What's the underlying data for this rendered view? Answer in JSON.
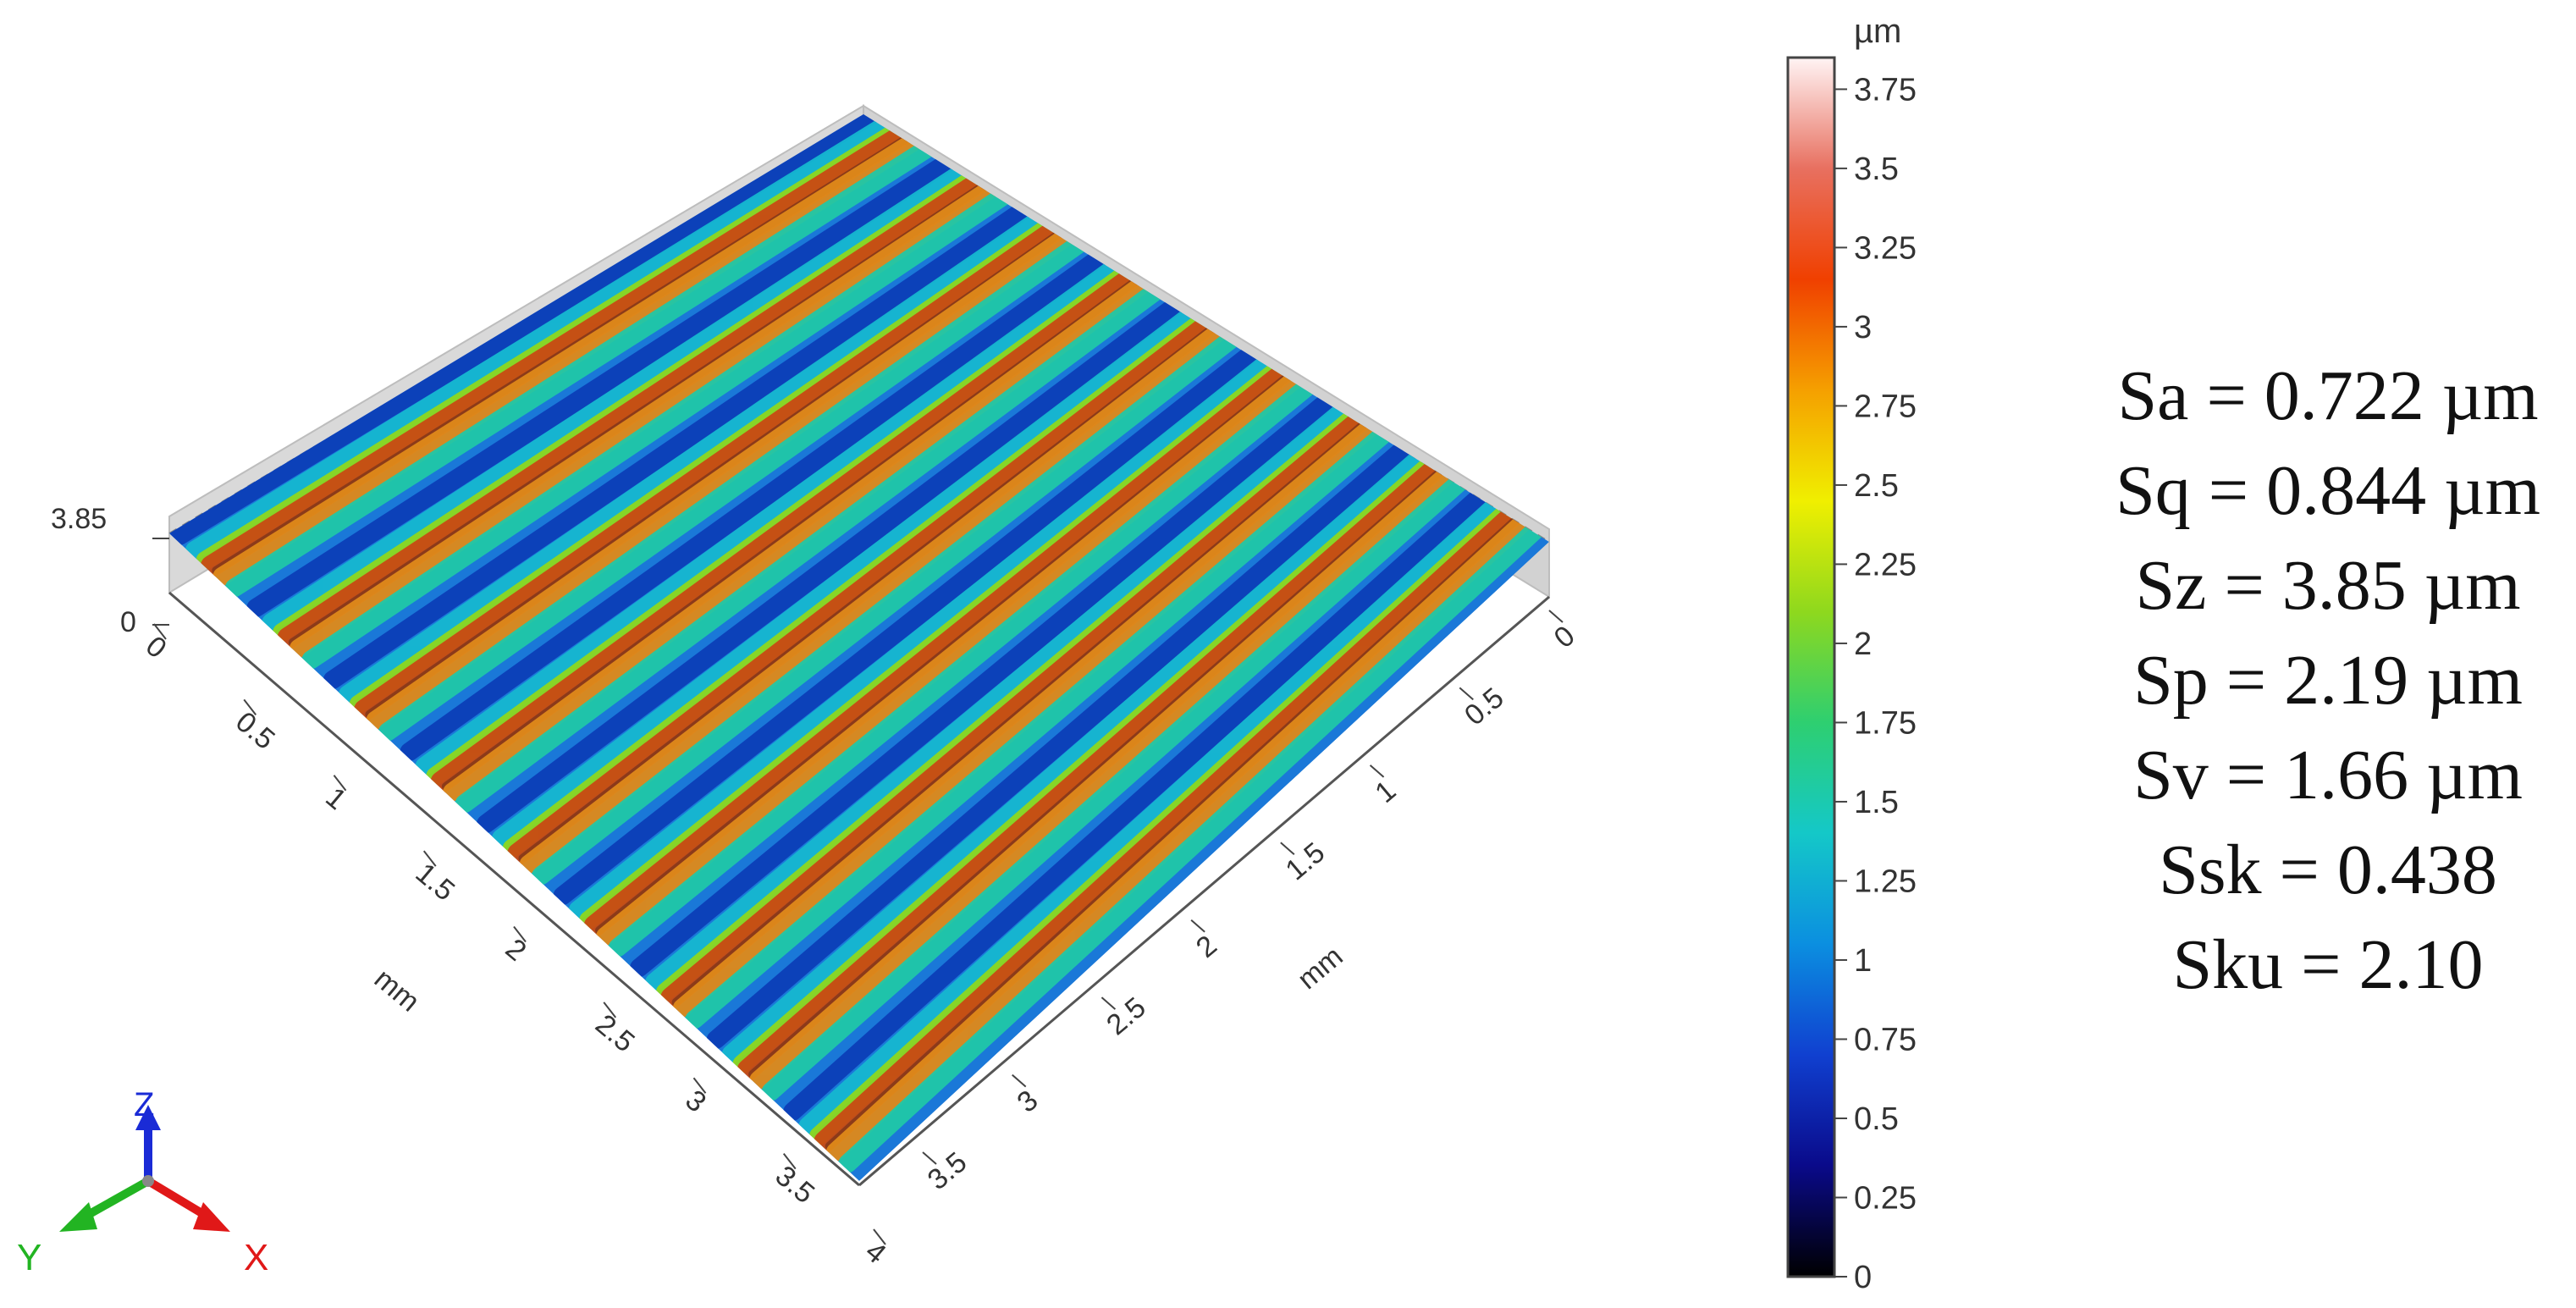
{
  "colorbar": {
    "unit": "µm",
    "ticks": [
      "0",
      "0.25",
      "0.5",
      "0.75",
      "1",
      "1.25",
      "1.5",
      "1.75",
      "2",
      "2.25",
      "2.5",
      "2.75",
      "3",
      "3.25",
      "3.5",
      "3.75"
    ],
    "min": 0,
    "max": 3.85,
    "colors": [
      "#000000",
      "#0a0a8a",
      "#1040d0",
      "#0b8fe0",
      "#14c8c8",
      "#2ecf70",
      "#8ed81e",
      "#f0ef00",
      "#f5a000",
      "#f04000",
      "#e87060",
      "#fff4f4"
    ]
  },
  "z_axis": {
    "top_label": "3.85",
    "bottom_label": "0"
  },
  "left_axis": {
    "ticks": [
      "0",
      "0.5",
      "1",
      "1.5",
      "2",
      "2.5",
      "3",
      "3.5",
      "4"
    ],
    "unit": "mm"
  },
  "right_axis": {
    "ticks": [
      "0",
      "0.5",
      "1",
      "1.5",
      "2",
      "2.5",
      "3",
      "3.5"
    ],
    "unit": "mm"
  },
  "triad": {
    "z": "Z",
    "x": "X",
    "y": "Y",
    "z_color": "#1a2bd6",
    "x_color": "#e01818",
    "y_color": "#22b422"
  },
  "parameters": [
    "Sa = 0.722 µm",
    "Sq = 0.844 µm",
    "Sz = 3.85 µm",
    "Sp = 2.19 µm",
    "Sv = 1.66 µm",
    "Ssk = 0.438",
    "Sku = 2.10"
  ]
}
